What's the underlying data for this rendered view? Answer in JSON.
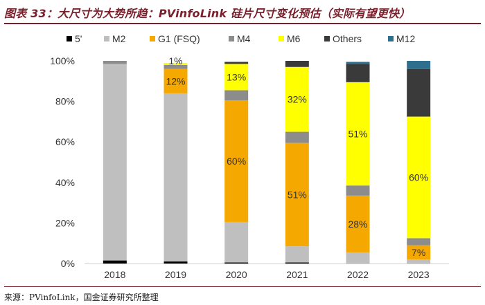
{
  "title": "图表 33：大尺寸为大势所趋：PVinfoLink 硅片尺寸变化预估（实际有望更快）",
  "source": "来源：PVinfoLink，国金证券研究所整理",
  "chart_data": {
    "type": "bar",
    "stacked": true,
    "categories": [
      "2018",
      "2019",
      "2020",
      "2021",
      "2022",
      "2023"
    ],
    "ylim": [
      0,
      100
    ],
    "yticks": [
      "0%",
      "20%",
      "40%",
      "60%",
      "80%",
      "100%"
    ],
    "legend_position": "top",
    "series": [
      {
        "name": "5'",
        "color": "#000000",
        "values": [
          1.5,
          1,
          0.5,
          0.5,
          0,
          0
        ]
      },
      {
        "name": "M2",
        "color": "#bfbfbf",
        "values": [
          97,
          83,
          20,
          8,
          5.5,
          2
        ]
      },
      {
        "name": "G1 (FSQ)",
        "color": "#f5a800",
        "values": [
          0,
          12,
          60,
          51,
          28,
          7
        ]
      },
      {
        "name": "M4",
        "color": "#8c8c8c",
        "values": [
          1.5,
          2,
          5,
          5.5,
          5,
          3.5
        ]
      },
      {
        "name": "M6",
        "color": "#ffff00",
        "values": [
          0,
          1,
          13,
          32,
          51,
          60
        ]
      },
      {
        "name": "Others",
        "color": "#3a3a3a",
        "values": [
          0,
          0,
          1,
          3,
          9,
          23.5
        ]
      },
      {
        "name": "M12",
        "color": "#2e6f8e",
        "values": [
          0,
          0,
          0,
          0,
          1,
          4
        ]
      }
    ],
    "data_labels": [
      {
        "category": "2019",
        "series": "M6",
        "text": "1%"
      },
      {
        "category": "2019",
        "series": "G1 (FSQ)",
        "text": "12%"
      },
      {
        "category": "2020",
        "series": "M6",
        "text": "13%"
      },
      {
        "category": "2020",
        "series": "G1 (FSQ)",
        "text": "60%"
      },
      {
        "category": "2021",
        "series": "M6",
        "text": "32%"
      },
      {
        "category": "2021",
        "series": "G1 (FSQ)",
        "text": "51%"
      },
      {
        "category": "2022",
        "series": "M6",
        "text": "51%"
      },
      {
        "category": "2022",
        "series": "G1 (FSQ)",
        "text": "28%"
      },
      {
        "category": "2023",
        "series": "M6",
        "text": "60%"
      },
      {
        "category": "2023",
        "series": "G1 (FSQ)",
        "text": "7%"
      }
    ]
  }
}
